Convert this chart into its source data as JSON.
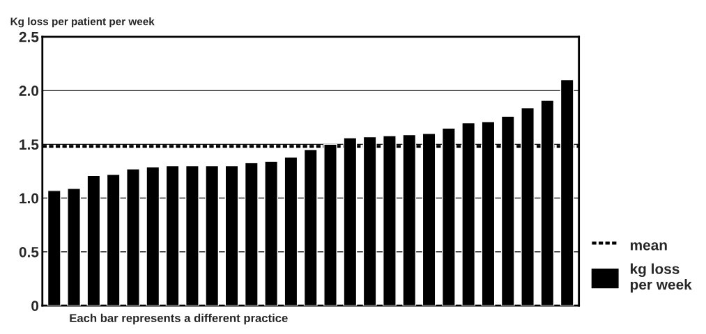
{
  "chart_data": {
    "type": "bar",
    "title": "Kg loss per patient per week",
    "xlabel": "Each bar represents a different practice",
    "categories": [
      null,
      null,
      null,
      null,
      null,
      null,
      null,
      null,
      null,
      null,
      null,
      null,
      null,
      null,
      null,
      null,
      null,
      null,
      null,
      null,
      null,
      null,
      null,
      null,
      null,
      null,
      null
    ],
    "series": [
      {
        "name": "kg loss\nper week",
        "color": "#000000",
        "values": [
          1.07,
          1.09,
          1.21,
          1.22,
          1.27,
          1.29,
          1.3,
          1.3,
          1.3,
          1.3,
          1.33,
          1.34,
          1.38,
          1.45,
          1.5,
          1.56,
          1.57,
          1.58,
          1.59,
          1.6,
          1.65,
          1.7,
          1.71,
          1.76,
          1.84,
          1.91,
          2.1
        ]
      }
    ],
    "ylim": [
      0,
      2.5
    ],
    "yticks": [
      0,
      0.5,
      {
        "value": 1.0,
        "label": "1.0"
      },
      1.5,
      {
        "value": 2.0,
        "label": "2.0"
      },
      2.5
    ],
    "ref_lines": [
      {
        "axis": "y",
        "value": 1.48,
        "label": "mean",
        "color": "#000000",
        "line_style": "dotted"
      }
    ],
    "grid": "y",
    "legend": "right",
    "tick_labels": "y"
  }
}
